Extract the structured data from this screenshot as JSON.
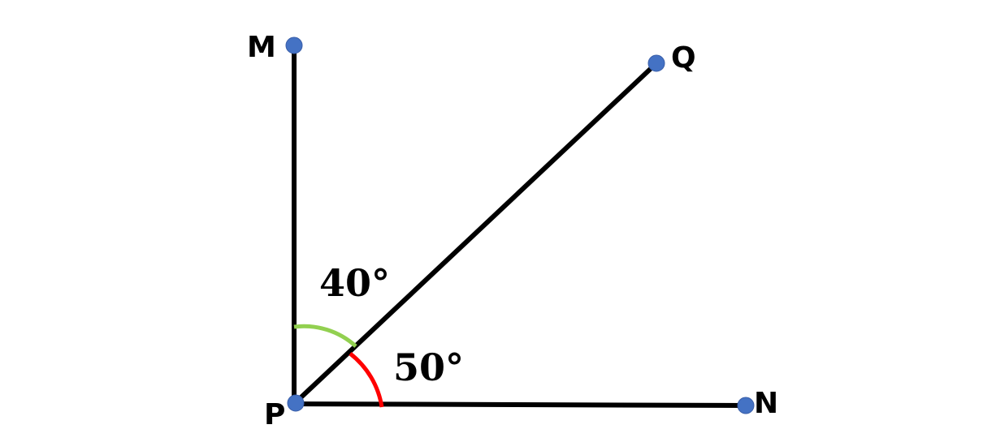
{
  "points": {
    "M": {
      "label": "M"
    },
    "Q": {
      "label": "Q"
    },
    "P": {
      "label": "P"
    },
    "N": {
      "label": "N"
    }
  },
  "angles": {
    "mpq": {
      "label": "40°",
      "color": "#92d050"
    },
    "qpn": {
      "label": "50°",
      "color": "#ff0000"
    }
  },
  "colors": {
    "point_fill": "#4472c4",
    "ray": "#000000"
  }
}
